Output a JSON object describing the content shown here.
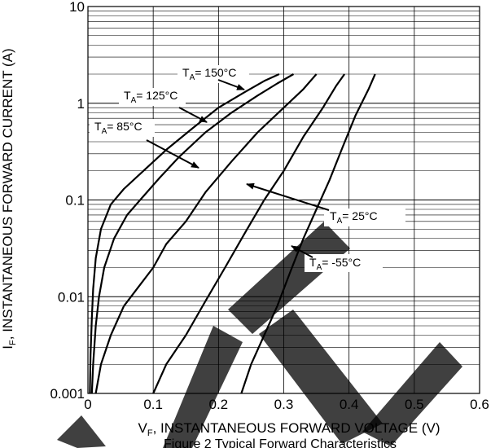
{
  "chart_data": {
    "type": "line",
    "caption": "Figure 2 Typical Forward Characteristics",
    "xlabel": "V_F, INSTANTANEOUS FORWARD VOLTAGE (V)",
    "xlabel_main": "V",
    "xlabel_sub": "F",
    "xlabel_rest": ", INSTANTANEOUS FORWARD VOLTAGE (V)",
    "ylabel": "I_F, INSTANTANEOUS FORWARD CURRENT (A)",
    "ylabel_main": "I",
    "ylabel_sub": "F",
    "ylabel_rest": ", INSTANTANEOUS FORWARD CURRENT (A)",
    "xlim": [
      0,
      0.6
    ],
    "ylim": [
      0.001,
      10
    ],
    "yscale": "log",
    "grid": true,
    "x_ticks": [
      0,
      0.1,
      0.2,
      0.3,
      0.4,
      0.5,
      0.6
    ],
    "x_tick_labels": [
      "0",
      "0.1",
      "0.2",
      "0.3",
      "0.4",
      "0.5",
      "0.6"
    ],
    "y_ticks": [
      0.001,
      0.01,
      0.1,
      1,
      10
    ],
    "y_tick_labels": [
      "0.001",
      "0.01",
      "0.1",
      "1",
      "10"
    ],
    "series": [
      {
        "name": "TA = 150°C",
        "label_main": "T",
        "label_sub": "A",
        "label_rest": "= 150°C",
        "x": [
          0.003,
          0.004,
          0.006,
          0.008,
          0.012,
          0.02,
          0.035,
          0.055,
          0.085,
          0.12,
          0.16,
          0.2,
          0.24,
          0.27,
          0.293
        ],
        "y": [
          0.001,
          0.0025,
          0.006,
          0.012,
          0.025,
          0.05,
          0.09,
          0.13,
          0.2,
          0.33,
          0.55,
          0.9,
          1.3,
          1.7,
          2.0
        ]
      },
      {
        "name": "TA = 125°C",
        "label_main": "T",
        "label_sub": "A",
        "label_rest": "= 125°C",
        "x": [
          0.006,
          0.008,
          0.012,
          0.017,
          0.025,
          0.04,
          0.06,
          0.08,
          0.11,
          0.14,
          0.18,
          0.22,
          0.26,
          0.29,
          0.315
        ],
        "y": [
          0.001,
          0.002,
          0.005,
          0.01,
          0.02,
          0.04,
          0.07,
          0.1,
          0.17,
          0.28,
          0.5,
          0.8,
          1.2,
          1.6,
          2.0
        ]
      },
      {
        "name": "TA = 85°C",
        "label_main": "T",
        "label_sub": "A",
        "label_rest": "= 85°C",
        "x": [
          0.012,
          0.02,
          0.035,
          0.055,
          0.075,
          0.1,
          0.12,
          0.15,
          0.18,
          0.22,
          0.26,
          0.3,
          0.33,
          0.35
        ],
        "y": [
          0.001,
          0.002,
          0.004,
          0.008,
          0.012,
          0.02,
          0.035,
          0.06,
          0.12,
          0.25,
          0.5,
          0.9,
          1.4,
          2.0
        ]
      },
      {
        "name": "TA = 25°C",
        "label_main": "T",
        "label_sub": "A",
        "label_rest": "= 25°C",
        "x": [
          0.1,
          0.12,
          0.15,
          0.18,
          0.21,
          0.24,
          0.27,
          0.3,
          0.33,
          0.36,
          0.38,
          0.393
        ],
        "y": [
          0.001,
          0.002,
          0.004,
          0.009,
          0.02,
          0.045,
          0.1,
          0.2,
          0.45,
          0.9,
          1.5,
          2.0
        ]
      },
      {
        "name": "TA = -55°C",
        "label_main": "T",
        "label_sub": "A",
        "label_rest": "= -55°C",
        "x": [
          0.235,
          0.25,
          0.27,
          0.29,
          0.31,
          0.33,
          0.35,
          0.37,
          0.39,
          0.41,
          0.43,
          0.44
        ],
        "y": [
          0.001,
          0.002,
          0.004,
          0.008,
          0.018,
          0.04,
          0.08,
          0.16,
          0.35,
          0.75,
          1.4,
          2.0
        ]
      }
    ],
    "watermark_color": "#000000"
  }
}
